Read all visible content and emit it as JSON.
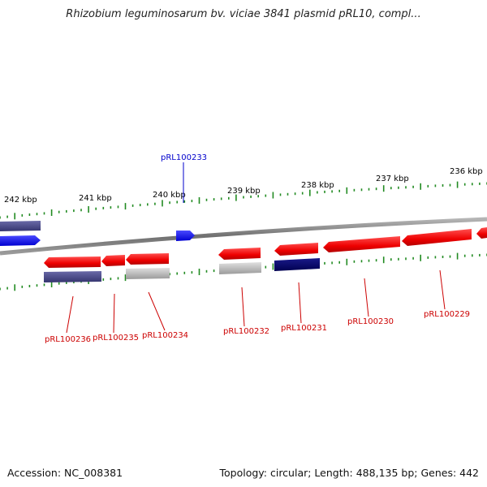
{
  "title": "Rhizobium leguminosarum bv. viciae 3841 plasmid pRL10, compl...",
  "footer": {
    "accession": "Accession: NC_008381",
    "topology": "Topology: circular; Length: 488,135 bp; Genes: 442"
  },
  "ticks": [
    "242 kbp",
    "241 kbp",
    "240 kbp",
    "239 kbp",
    "238 kbp",
    "237 kbp",
    "236 kbp"
  ],
  "gene_labels": [
    {
      "text": "pRL100233",
      "color": "#0000cc"
    },
    {
      "text": "pRL100236",
      "color": "#cc0000"
    },
    {
      "text": "pRL100235",
      "color": "#cc0000"
    },
    {
      "text": "pRL100234",
      "color": "#cc0000"
    },
    {
      "text": "pRL100232",
      "color": "#cc0000"
    },
    {
      "text": "pRL100231",
      "color": "#cc0000"
    },
    {
      "text": "pRL100230",
      "color": "#cc0000"
    },
    {
      "text": "pRL100229",
      "color": "#cc0000"
    }
  ],
  "colors": {
    "forward_gene": "#ff0000",
    "reverse_gene": "#ff0000",
    "blue_gene": "#0000ff",
    "slate_gene": "#44448a",
    "navy_gene": "#00006e",
    "gray_gene": "#bdbdbd",
    "backbone": "#808080",
    "tick_green": "#228b22"
  }
}
